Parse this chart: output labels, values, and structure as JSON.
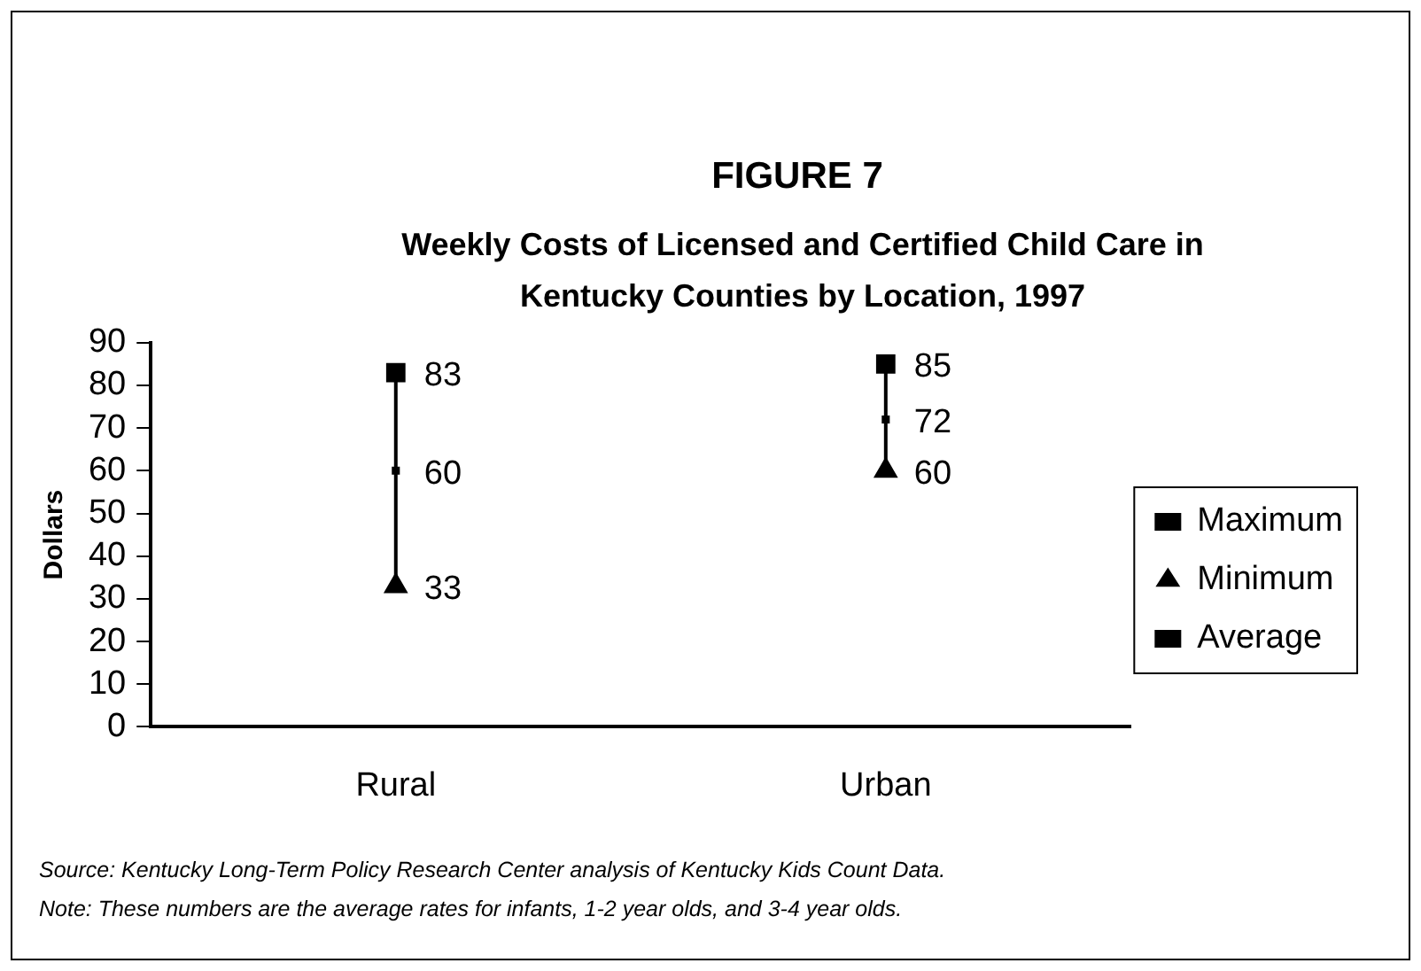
{
  "chart_data": {
    "type": "scatter",
    "title": "FIGURE 7",
    "subtitle": "Weekly Costs of Licensed and Certified Child Care in Kentucky Counties by Location, 1997",
    "ylabel": "Dollars",
    "categories": [
      "Rural",
      "Urban"
    ],
    "series": [
      {
        "name": "Maximum",
        "color": "#000000",
        "marker": "square",
        "values": [
          83,
          85
        ]
      },
      {
        "name": "Minimum",
        "color": "#000000",
        "marker": "triangle",
        "values": [
          33,
          60
        ]
      },
      {
        "name": "Average",
        "color": "#000000",
        "marker": "square",
        "values": [
          60,
          72
        ]
      }
    ],
    "ylim": [
      0,
      90
    ],
    "yticks": [
      0,
      10,
      20,
      30,
      40,
      50,
      60,
      70,
      80,
      90
    ],
    "grid": false,
    "legend": "right",
    "data_labels": true,
    "annotations": [
      "Source: Kentucky Long-Term Policy Research Center analysis of Kentucky Kids Count Data.",
      "Note: These numbers are the average rates for infants, 1-2 year olds, and 3-4 year olds."
    ]
  }
}
